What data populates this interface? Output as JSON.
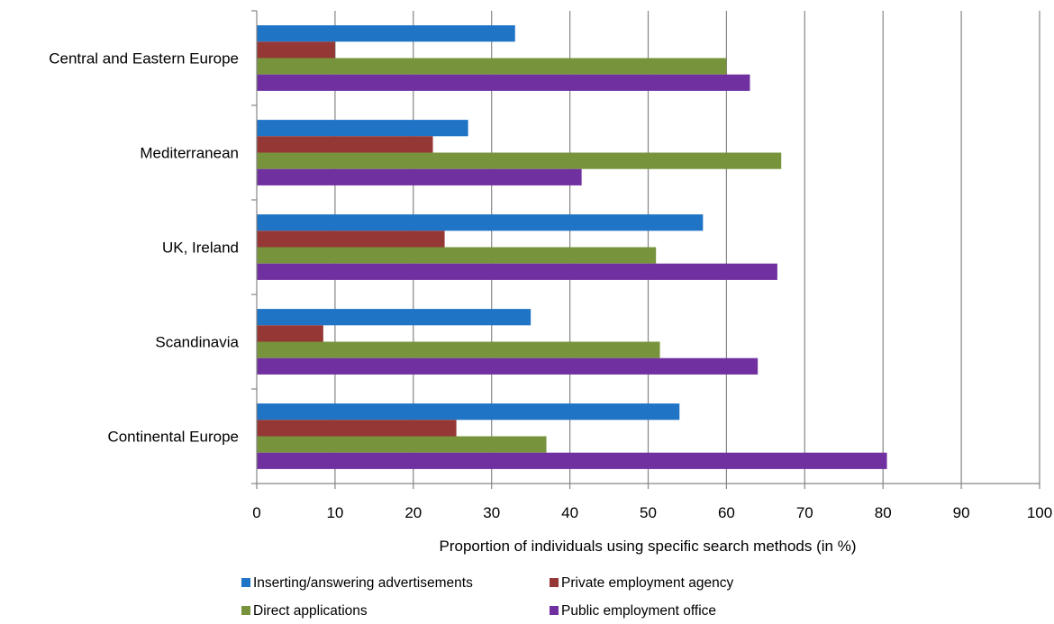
{
  "chart_data": {
    "type": "bar",
    "orientation": "horizontal",
    "categories": [
      "Central and Eastern Europe",
      "Mediterranean",
      "UK, Ireland",
      "Scandinavia",
      "Continental Europe"
    ],
    "series": [
      {
        "name": "Inserting/answering advertisements",
        "color": "#1f74c6",
        "values": [
          33,
          27,
          57,
          35,
          54
        ]
      },
      {
        "name": "Private employment agency",
        "color": "#953735",
        "values": [
          10,
          22.5,
          24,
          8.5,
          25.5
        ]
      },
      {
        "name": "Direct applications",
        "color": "#77933c",
        "values": [
          60,
          67,
          51,
          51.5,
          37
        ]
      },
      {
        "name": "Public employment office",
        "color": "#7030a0",
        "values": [
          63,
          41.5,
          66.5,
          64,
          80.5
        ]
      }
    ],
    "xlim": [
      0,
      100
    ],
    "xticks": [
      "0",
      "10",
      "20",
      "30",
      "40",
      "50",
      "60",
      "70",
      "80",
      "90",
      "100"
    ],
    "xlabel": "Proportion of individuals using specific search methods (in %)",
    "ylabel": "",
    "grid": "vertical",
    "legend_placement": "bottom"
  }
}
